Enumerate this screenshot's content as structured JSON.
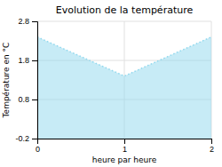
{
  "chart_data": {
    "type": "area",
    "title": "Evolution de la température",
    "xlabel": "heure par heure",
    "ylabel": "Température en °C",
    "x": [
      0,
      1,
      2
    ],
    "values": [
      2.4,
      1.4,
      2.4
    ],
    "xlim": [
      0,
      2
    ],
    "ylim": [
      -0.2,
      2.8
    ],
    "xticks": [
      0,
      1,
      2
    ],
    "yticks": [
      -0.2,
      0.8,
      1.8,
      2.8
    ],
    "color": "#90d8ee",
    "line_style": "dotted",
    "grid": true
  }
}
